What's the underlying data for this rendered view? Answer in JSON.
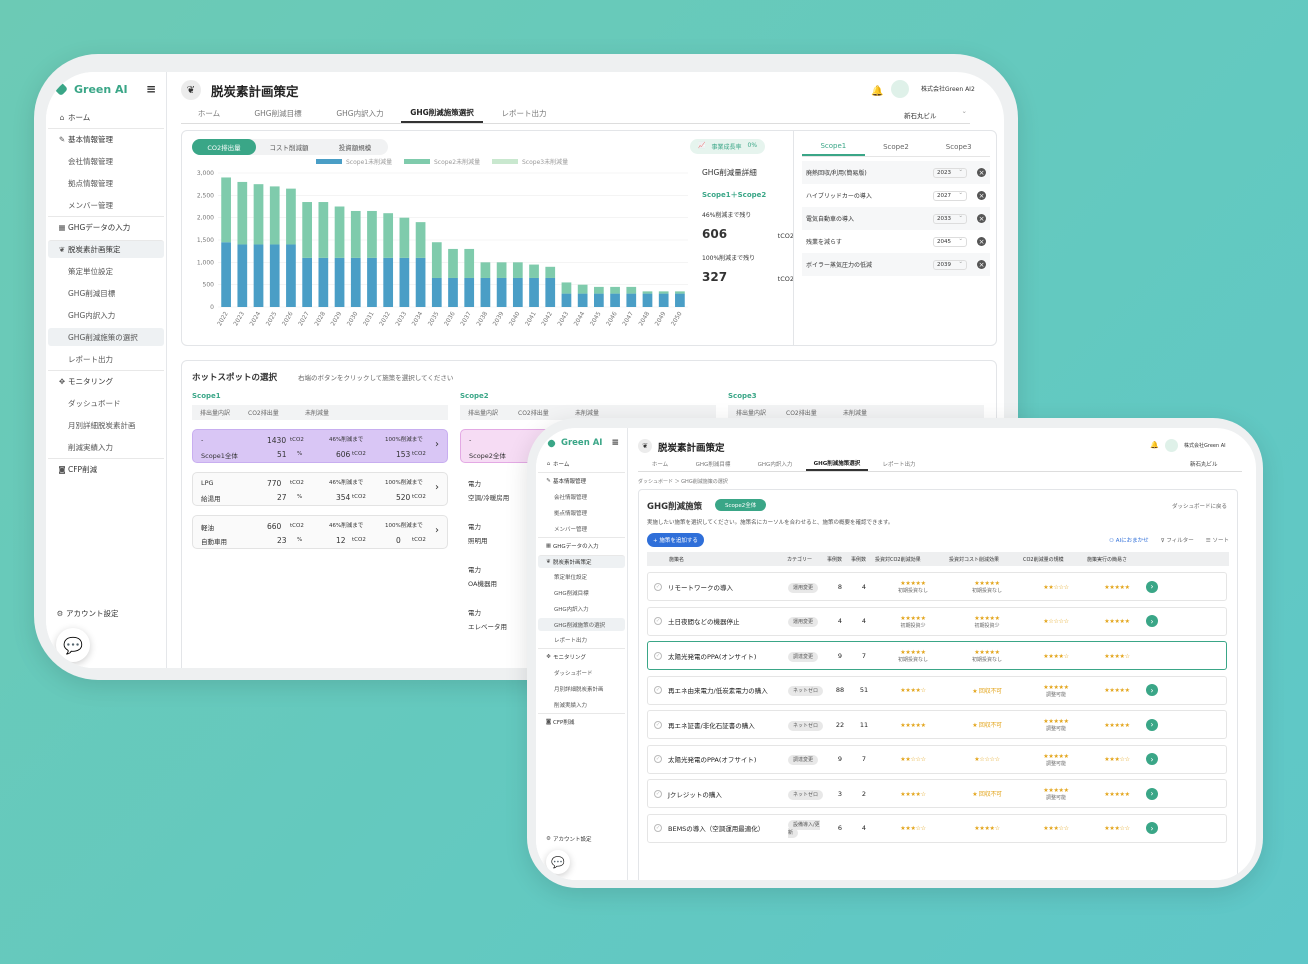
{
  "app": {
    "name": "Green AI"
  },
  "nav": {
    "home": "ホーム",
    "basic": "基本情報管理",
    "company": "会社情報管理",
    "site": "拠点情報管理",
    "member": "メンバー管理",
    "ghg_input": "GHGデータの入力",
    "plan": "脱炭素計画策定",
    "strategy_unit": "策定単位設定",
    "ghg_target": "GHG削減目標",
    "ghg_breakdown": "GHG内訳入力",
    "ghg_measures": "GHG削減施策の選択",
    "report": "レポート出力",
    "monitoring": "モニタリング",
    "dashboard": "ダッシュボード",
    "monthly": "月別詳細脱炭素計画",
    "actual": "削減実績入力",
    "cfp": "CFP削減",
    "account": "アカウント設定"
  },
  "header": {
    "title": "脱炭素計画策定",
    "company": "株式会社Green AI",
    "company2": "株式会社Green AI2",
    "building": "新石丸ビル"
  },
  "tabs": [
    "ホーム",
    "GHG削減目標",
    "GHG内訳入力",
    "GHG削減施策選択",
    "レポート出力"
  ],
  "chart_card": {
    "tabs": [
      "CO2排出量",
      "コスト削減額",
      "投資額規模"
    ],
    "growth_label": "事業成長率",
    "growth_value": "0%"
  },
  "chart_data": {
    "type": "bar",
    "stacked": true,
    "categories": [
      "2022",
      "2023",
      "2024",
      "2025",
      "2026",
      "2027",
      "2028",
      "2029",
      "2030",
      "2031",
      "2032",
      "2033",
      "2034",
      "2035",
      "2036",
      "2037",
      "2038",
      "2039",
      "2040",
      "2041",
      "2042",
      "2043",
      "2044",
      "2045",
      "2046",
      "2047",
      "2048",
      "2049",
      "2050"
    ],
    "series": [
      {
        "name": "Scope1未削減量",
        "color": "#4a9ec6",
        "values": [
          1450,
          1400,
          1400,
          1400,
          1400,
          1100,
          1100,
          1100,
          1100,
          1100,
          1100,
          1100,
          1100,
          650,
          650,
          650,
          650,
          650,
          650,
          650,
          650,
          300,
          300,
          300,
          300,
          300,
          300,
          300,
          300
        ]
      },
      {
        "name": "Scope2未削減量",
        "color": "#7fcbac",
        "values": [
          1450,
          1400,
          1350,
          1300,
          1250,
          1250,
          1250,
          1150,
          1050,
          1050,
          1000,
          900,
          800,
          800,
          650,
          650,
          350,
          350,
          350,
          300,
          250,
          250,
          200,
          150,
          150,
          150,
          50,
          50,
          50
        ]
      },
      {
        "name": "Scope3未削減量",
        "color": "#c9e8cf",
        "values": [
          0,
          0,
          0,
          0,
          0,
          0,
          0,
          0,
          0,
          0,
          0,
          0,
          0,
          0,
          0,
          0,
          0,
          0,
          0,
          0,
          0,
          0,
          0,
          0,
          0,
          0,
          0,
          0,
          0
        ]
      }
    ],
    "ylim": [
      0,
      3000
    ],
    "yticks": [
      "3,000",
      "2,500",
      "2,000",
      "1,500",
      "1,000",
      "500",
      "0"
    ],
    "legend": "top",
    "grid": true
  },
  "detail": {
    "title": "GHG削減量詳細",
    "scope": "Scope1＋Scope2",
    "remain46_label": "46%削減まで残り",
    "remain46_value": "606",
    "remain100_label": "100%削減まで残り",
    "remain100_value": "327",
    "unit": "tCO2"
  },
  "scope_tabs": [
    "Scope1",
    "Scope2",
    "Scope3"
  ],
  "measures": [
    {
      "name": "廃熱回収/利用(簡易版)",
      "year": "2023"
    },
    {
      "name": "ハイブリッドカーの導入",
      "year": "2027"
    },
    {
      "name": "電気自動車の導入",
      "year": "2033"
    },
    {
      "name": "残業を減らす",
      "year": "2045"
    },
    {
      "name": "ボイラー蒸気圧力の低減",
      "year": "2039"
    }
  ],
  "hotspot": {
    "title": "ホットスポットの選択",
    "hint": "右端のボタンをクリックして施策を選択してください",
    "scopes": [
      "Scope1",
      "Scope2",
      "Scope3"
    ],
    "cols": [
      "排出量内訳",
      "CO2排出量",
      "未削減量"
    ],
    "scope1_items": [
      {
        "top": "-",
        "name": "Scope1全体",
        "co2": "1430",
        "pct": "51",
        "r46": "606",
        "r100": "153"
      },
      {
        "top": "LPG",
        "name": "給湯用",
        "co2": "770",
        "pct": "27",
        "r46": "354",
        "r100": "520"
      },
      {
        "top": "軽油",
        "name": "自動車用",
        "co2": "660",
        "pct": "23",
        "r46": "12",
        "r100": "0"
      }
    ],
    "scope2_items": [
      {
        "top": "-",
        "name": "Scope2全体"
      },
      {
        "top": "電力",
        "name": "空調/冷暖房用"
      },
      {
        "top": "電力",
        "name": "照明用"
      },
      {
        "top": "電力",
        "name": "OA機器用"
      },
      {
        "top": "電力",
        "name": "エレベータ用"
      }
    ],
    "l46": "46%削減まで",
    "l100": "100%削減まで",
    "unit": "tCO2",
    "pct_unit": "%"
  },
  "screen2": {
    "breadcrumb": "ダッシュボード ＞ GHG削減施策の選択",
    "heading": "GHG削減施策",
    "scope_badge": "Scope2全体",
    "back": "ダッシュボードに戻る",
    "desc": "実施したい施策を選択してください。施策名にカーソルを合わせると、施策の概要を確認できます。",
    "add": "+ 施策を追加する",
    "ai": "AIにおまかせ",
    "filter": "フィルター",
    "sort": "ソート",
    "headers": [
      "施策名",
      "カテゴリー",
      "事例数",
      "事例数",
      "投資対CO2削減効果",
      "投資対コスト削減効果",
      "CO2削減量の規模",
      "施策実行の簡易さ"
    ],
    "rows": [
      {
        "name": "リモートワークの導入",
        "cat": "運用変更",
        "n1": "8",
        "n2": "4",
        "s1": "★★★★★",
        "s1sub": "初期投資なし",
        "s2": "★★★★★",
        "s2sub": "初期投資なし",
        "s3": "★★☆☆☆",
        "s4": "★★★★★",
        "hl": false
      },
      {
        "name": "土日夜間などの機器停止",
        "cat": "運用変更",
        "n1": "4",
        "n2": "4",
        "s1": "★★★★★",
        "s1sub": "初期投資少",
        "s2": "★★★★★",
        "s2sub": "初期投資少",
        "s3": "★☆☆☆☆",
        "s4": "★★★★★",
        "hl": false
      },
      {
        "name": "太陽光発電のPPA(オンサイト)",
        "cat": "調達変更",
        "n1": "9",
        "n2": "7",
        "s1": "★★★★★",
        "s1sub": "初期投資なし",
        "s2": "★★★★★",
        "s2sub": "初期投資なし",
        "s3": "★★★★☆",
        "s4": "★★★★☆",
        "hl": true
      },
      {
        "name": "再エネ由来電力/低炭素電力の購入",
        "cat": "ネットゼロ",
        "n1": "88",
        "n2": "51",
        "s1": "★★★★☆",
        "s1sub": "",
        "s2": "★ 回収不可",
        "s2sub": "",
        "s3": "★★★★★",
        "s3sub": "調整可能",
        "s4": "★★★★★",
        "hl": false
      },
      {
        "name": "再エネ証書/非化石証書の購入",
        "cat": "ネットゼロ",
        "n1": "22",
        "n2": "11",
        "s1": "★★★★★",
        "s1sub": "",
        "s2": "★ 回収不可",
        "s2sub": "",
        "s3": "★★★★★",
        "s3sub": "調整可能",
        "s4": "★★★★★",
        "hl": false
      },
      {
        "name": "太陽光発電のPPA(オフサイト)",
        "cat": "調達変更",
        "n1": "9",
        "n2": "7",
        "s1": "★★☆☆☆",
        "s1sub": "",
        "s2": "★☆☆☆☆",
        "s2sub": "",
        "s3": "★★★★★",
        "s3sub": "調整可能",
        "s4": "★★★☆☆",
        "hl": false
      },
      {
        "name": "Jクレジットの購入",
        "cat": "ネットゼロ",
        "n1": "3",
        "n2": "2",
        "s1": "★★★★☆",
        "s1sub": "",
        "s2": "★ 回収不可",
        "s2sub": "",
        "s3": "★★★★★",
        "s3sub": "調整可能",
        "s4": "★★★★★",
        "hl": false
      },
      {
        "name": "BEMSの導入（空調運用最適化）",
        "cat": "設備導入/更新",
        "n1": "6",
        "n2": "4",
        "s1": "★★★☆☆",
        "s1sub": "",
        "s2": "★★★★☆",
        "s2sub": "",
        "s3": "★★★☆☆",
        "s4": "★★★☆☆",
        "hl": false
      }
    ]
  }
}
